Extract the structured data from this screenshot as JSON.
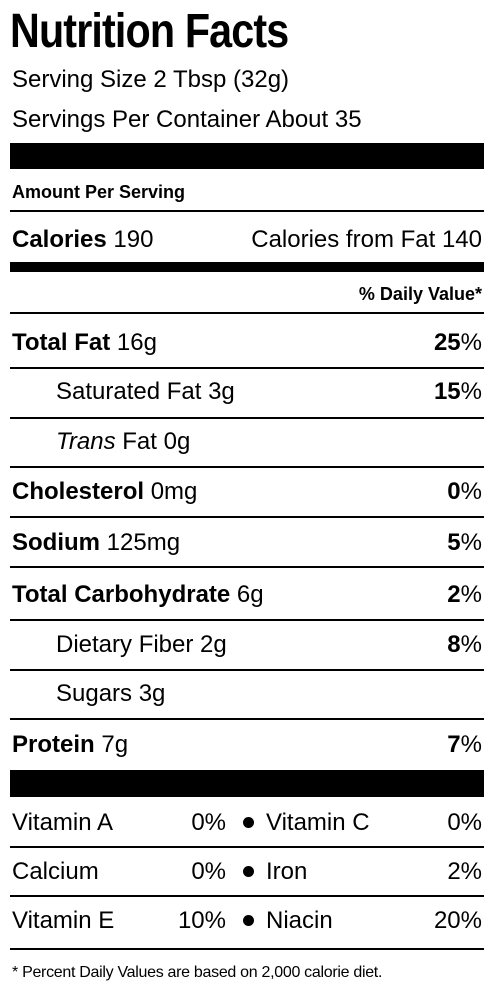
{
  "title": "Nutrition Facts",
  "serving_size": "Serving Size 2 Tbsp (32g)",
  "servings_per_container": "Servings Per Container About 35",
  "amount_per_serving": "Amount Per Serving",
  "calories": {
    "label": "Calories",
    "value": "190",
    "from_fat": "Calories from Fat 140"
  },
  "daily_value_header": "% Daily Value*",
  "nutrients": [
    {
      "label": "Total Fat",
      "amount": "16g",
      "dv": "25",
      "pct": "%"
    },
    {
      "label": "Saturated Fat 3g",
      "dv": "15",
      "pct": "%"
    },
    {
      "label_italic": "Trans",
      "label": "Fat 0g"
    },
    {
      "label": "Cholesterol",
      "amount": "0mg",
      "dv": "0",
      "pct": "%"
    },
    {
      "label": "Sodium",
      "amount": "125mg",
      "dv": "5",
      "pct": "%"
    },
    {
      "label": "Total Carbohydrate",
      "amount": "6g",
      "dv": "2",
      "pct": "%"
    },
    {
      "label": "Dietary Fiber 2g",
      "dv": "8",
      "pct": "%"
    },
    {
      "label": "Sugars 3g"
    },
    {
      "label": "Protein",
      "amount": "7g",
      "dv": "7",
      "pct": "%"
    }
  ],
  "vitamins": [
    {
      "name1": "Vitamin A",
      "value1": "0%",
      "name2": "Vitamin C",
      "value2": "0%"
    },
    {
      "name1": "Calcium",
      "value1": "0%",
      "name2": "Iron",
      "value2": "2%"
    },
    {
      "name1": "Vitamin E",
      "value1": "10%",
      "name2": "Niacin",
      "value2": "20%"
    }
  ],
  "footnote": "* Percent Daily Values are based on 2,000 calorie diet."
}
